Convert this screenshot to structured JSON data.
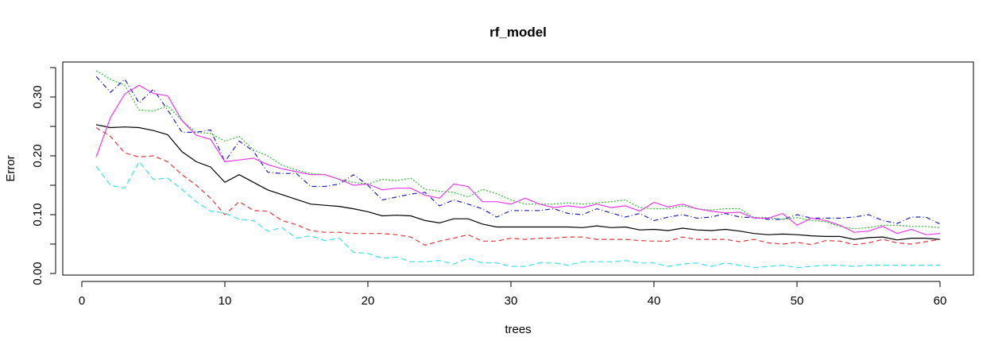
{
  "chart_data": {
    "type": "line",
    "title": "rf_model",
    "xlabel": "trees",
    "ylabel": "Error",
    "xlim": [
      0,
      60
    ],
    "ylim": [
      0,
      0.35
    ],
    "x_ticks": [
      0,
      10,
      20,
      30,
      40,
      50,
      60
    ],
    "x_tick_labels": [
      "0",
      "10",
      "20",
      "30",
      "40",
      "50",
      "60"
    ],
    "y_ticks": [
      0.0,
      0.1,
      0.2,
      0.3
    ],
    "y_tick_labels": [
      "0.00",
      "0.10",
      "0.20",
      "0.30"
    ],
    "grid": false,
    "legend": "none",
    "x": [
      1,
      2,
      3,
      4,
      5,
      6,
      7,
      8,
      9,
      10,
      11,
      12,
      13,
      14,
      15,
      16,
      17,
      18,
      19,
      20,
      21,
      22,
      23,
      24,
      25,
      26,
      27,
      28,
      29,
      30,
      31,
      32,
      33,
      34,
      35,
      36,
      37,
      38,
      39,
      40,
      41,
      42,
      43,
      44,
      45,
      46,
      47,
      48,
      49,
      50,
      51,
      52,
      53,
      54,
      55,
      56,
      57,
      58,
      59,
      60
    ],
    "series": [
      {
        "color": "#000000",
        "dash": "solid",
        "values": [
          0.253,
          0.248,
          0.249,
          0.248,
          0.243,
          0.236,
          0.207,
          0.19,
          0.181,
          0.155,
          0.168,
          0.155,
          0.142,
          0.134,
          0.126,
          0.118,
          0.116,
          0.114,
          0.11,
          0.105,
          0.098,
          0.099,
          0.098,
          0.09,
          0.086,
          0.093,
          0.093,
          0.084,
          0.079,
          0.079,
          0.079,
          0.079,
          0.079,
          0.079,
          0.078,
          0.081,
          0.078,
          0.079,
          0.074,
          0.075,
          0.073,
          0.077,
          0.074,
          0.073,
          0.075,
          0.072,
          0.068,
          0.066,
          0.067,
          0.066,
          0.064,
          0.063,
          0.063,
          0.058,
          0.061,
          0.062,
          0.057,
          0.06,
          0.06,
          0.058
        ]
      },
      {
        "color": "#df3b3b",
        "dash": "6,4",
        "values": [
          0.248,
          0.233,
          0.205,
          0.198,
          0.2,
          0.19,
          0.168,
          0.15,
          0.128,
          0.1,
          0.122,
          0.107,
          0.106,
          0.09,
          0.083,
          0.073,
          0.07,
          0.07,
          0.068,
          0.068,
          0.068,
          0.066,
          0.062,
          0.048,
          0.055,
          0.06,
          0.066,
          0.055,
          0.055,
          0.06,
          0.058,
          0.06,
          0.06,
          0.062,
          0.062,
          0.058,
          0.058,
          0.058,
          0.056,
          0.055,
          0.055,
          0.062,
          0.058,
          0.058,
          0.058,
          0.054,
          0.058,
          0.052,
          0.05,
          0.053,
          0.049,
          0.056,
          0.055,
          0.049,
          0.052,
          0.058,
          0.052,
          0.05,
          0.054,
          0.058
        ]
      },
      {
        "color": "#2fbf2f",
        "dash": "2,2",
        "values": [
          0.345,
          0.33,
          0.32,
          0.278,
          0.276,
          0.285,
          0.26,
          0.24,
          0.238,
          0.225,
          0.233,
          0.21,
          0.2,
          0.184,
          0.176,
          0.17,
          0.168,
          0.16,
          0.155,
          0.152,
          0.16,
          0.158,
          0.162,
          0.143,
          0.14,
          0.138,
          0.13,
          0.143,
          0.136,
          0.125,
          0.118,
          0.118,
          0.118,
          0.12,
          0.118,
          0.12,
          0.122,
          0.125,
          0.112,
          0.11,
          0.11,
          0.115,
          0.11,
          0.108,
          0.11,
          0.11,
          0.095,
          0.095,
          0.092,
          0.095,
          0.09,
          0.088,
          0.08,
          0.076,
          0.078,
          0.082,
          0.082,
          0.08,
          0.08,
          0.078
        ]
      },
      {
        "color": "#2222bb",
        "dash": "6,3,1,3",
        "values": [
          0.335,
          0.308,
          0.33,
          0.29,
          0.313,
          0.278,
          0.24,
          0.24,
          0.244,
          0.19,
          0.225,
          0.208,
          0.172,
          0.17,
          0.17,
          0.148,
          0.148,
          0.152,
          0.168,
          0.15,
          0.125,
          0.13,
          0.135,
          0.138,
          0.115,
          0.125,
          0.118,
          0.11,
          0.096,
          0.107,
          0.107,
          0.107,
          0.11,
          0.102,
          0.1,
          0.11,
          0.103,
          0.096,
          0.102,
          0.09,
          0.096,
          0.1,
          0.094,
          0.096,
          0.102,
          0.096,
          0.095,
          0.092,
          0.092,
          0.1,
          0.094,
          0.094,
          0.094,
          0.096,
          0.1,
          0.09,
          0.085,
          0.096,
          0.096,
          0.084
        ]
      },
      {
        "color": "#e63ee6",
        "dash": "solid",
        "values": [
          0.198,
          0.265,
          0.305,
          0.32,
          0.306,
          0.302,
          0.26,
          0.235,
          0.228,
          0.19,
          0.193,
          0.196,
          0.185,
          0.178,
          0.173,
          0.168,
          0.168,
          0.16,
          0.15,
          0.152,
          0.142,
          0.145,
          0.145,
          0.133,
          0.128,
          0.152,
          0.148,
          0.122,
          0.122,
          0.118,
          0.128,
          0.118,
          0.112,
          0.115,
          0.112,
          0.118,
          0.112,
          0.115,
          0.106,
          0.121,
          0.113,
          0.118,
          0.11,
          0.106,
          0.103,
          0.104,
          0.094,
          0.094,
          0.102,
          0.082,
          0.094,
          0.09,
          0.082,
          0.07,
          0.072,
          0.08,
          0.068,
          0.075,
          0.066,
          0.068
        ]
      },
      {
        "color": "#3fe0e8",
        "dash": "7,4",
        "values": [
          0.182,
          0.15,
          0.145,
          0.19,
          0.16,
          0.162,
          0.143,
          0.122,
          0.106,
          0.103,
          0.092,
          0.09,
          0.072,
          0.078,
          0.06,
          0.064,
          0.056,
          0.06,
          0.036,
          0.034,
          0.026,
          0.028,
          0.02,
          0.02,
          0.022,
          0.016,
          0.026,
          0.018,
          0.018,
          0.012,
          0.012,
          0.018,
          0.018,
          0.014,
          0.02,
          0.02,
          0.02,
          0.022,
          0.018,
          0.018,
          0.012,
          0.016,
          0.018,
          0.012,
          0.018,
          0.014,
          0.01,
          0.012,
          0.014,
          0.01,
          0.012,
          0.014,
          0.014,
          0.012,
          0.014,
          0.014,
          0.014,
          0.014,
          0.014,
          0.014
        ]
      }
    ]
  }
}
